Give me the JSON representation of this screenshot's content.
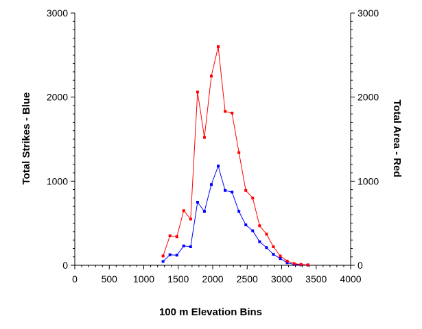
{
  "chart_data": {
    "type": "line",
    "title": "",
    "xlabel": "100 m Elevation Bins",
    "ylabel_left": "Total Strikes - Blue",
    "ylabel_right": "Total Area - Red",
    "xlim": [
      0,
      4000
    ],
    "ylim_left": [
      0,
      3000
    ],
    "ylim_right": [
      0,
      3000
    ],
    "x_ticks": [
      0,
      500,
      1000,
      1500,
      2000,
      2500,
      3000,
      3500,
      4000
    ],
    "x_tick_labels": [
      "0",
      "500",
      "1000",
      "1500",
      "2000",
      "2500",
      "3000",
      "3500",
      "4000"
    ],
    "y_ticks": [
      0,
      1000,
      2000,
      3000
    ],
    "y_tick_labels": [
      "0",
      "1000",
      "2000",
      "3000"
    ],
    "grid": false,
    "colors": {
      "blue_series": "#0000ff",
      "red_series": "#ff0000"
    },
    "series": [
      {
        "key": "blue_series",
        "axis": "left",
        "x": [
          1280,
          1380,
          1480,
          1580,
          1680,
          1780,
          1880,
          1980,
          2080,
          2180,
          2280,
          2380,
          2480,
          2580,
          2680,
          2780,
          2880,
          2980,
          3080,
          3180,
          3280,
          3380
        ],
        "values": [
          45,
          125,
          120,
          230,
          220,
          750,
          640,
          960,
          1180,
          890,
          870,
          640,
          480,
          410,
          280,
          210,
          130,
          80,
          30,
          10,
          5,
          2
        ]
      },
      {
        "key": "red_series",
        "axis": "right",
        "x": [
          1280,
          1380,
          1480,
          1580,
          1680,
          1780,
          1880,
          1980,
          2080,
          2180,
          2280,
          2380,
          2480,
          2580,
          2680,
          2780,
          2880,
          2980,
          3080,
          3180,
          3280,
          3380
        ],
        "values": [
          110,
          350,
          340,
          650,
          550,
          2060,
          1520,
          2250,
          2600,
          1830,
          1810,
          1340,
          890,
          800,
          470,
          370,
          220,
          110,
          50,
          20,
          10,
          5
        ]
      }
    ]
  }
}
